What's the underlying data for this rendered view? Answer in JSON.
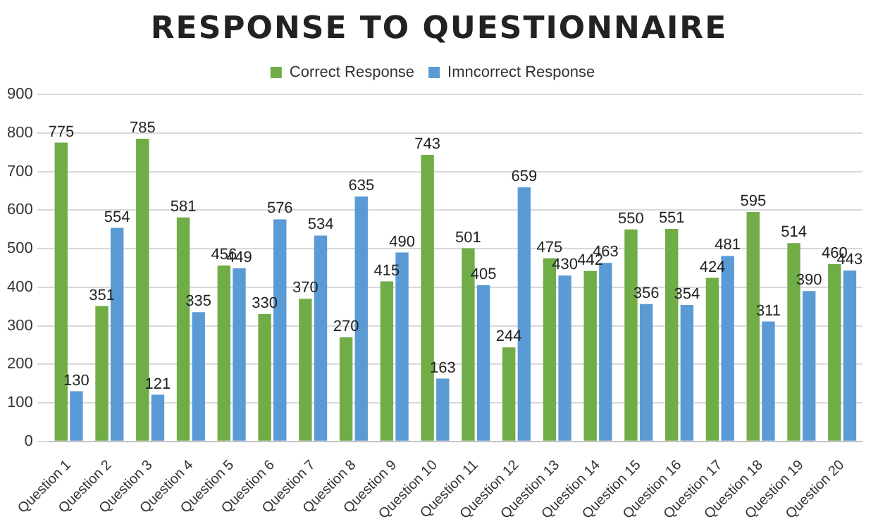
{
  "chart_data": {
    "type": "bar",
    "title": "RESPONSE TO QUESTIONNAIRE",
    "categories": [
      "Question 1",
      "Question 2",
      "Question 3",
      "Question 4",
      "Question 5",
      "Question 6",
      "Question 7",
      "Question 8",
      "Question 9",
      "Question 10",
      "Question 11",
      "Question 12",
      "Question 13",
      "Question 14",
      "Question 15",
      "Question 16",
      "Question 17",
      "Question 18",
      "Question 19",
      "Question 20"
    ],
    "series": [
      {
        "name": "Correct Response",
        "color": "#70ad47",
        "values": [
          775,
          351,
          785,
          581,
          456,
          330,
          370,
          270,
          415,
          743,
          501,
          244,
          475,
          442,
          550,
          551,
          424,
          595,
          514,
          460
        ]
      },
      {
        "name": "Imncorrect Response",
        "color": "#5b9bd5",
        "values": [
          130,
          554,
          121,
          335,
          449,
          576,
          534,
          635,
          490,
          163,
          405,
          659,
          430,
          463,
          356,
          354,
          481,
          311,
          390,
          443
        ]
      }
    ],
    "ylim": [
      0,
      900
    ],
    "yticks": [
      0,
      100,
      200,
      300,
      400,
      500,
      600,
      700,
      800,
      900
    ],
    "grid": "y",
    "legend": "top",
    "data_labels": true
  }
}
